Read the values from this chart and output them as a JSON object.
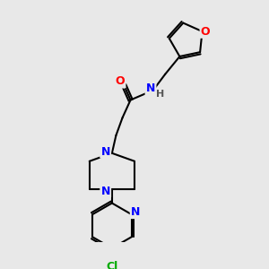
{
  "bg_color": "#e8e8e8",
  "atom_colors": {
    "O": "#ff0000",
    "N": "#0000ff",
    "Cl": "#00aa00",
    "C": "#000000",
    "H": "#555555"
  }
}
